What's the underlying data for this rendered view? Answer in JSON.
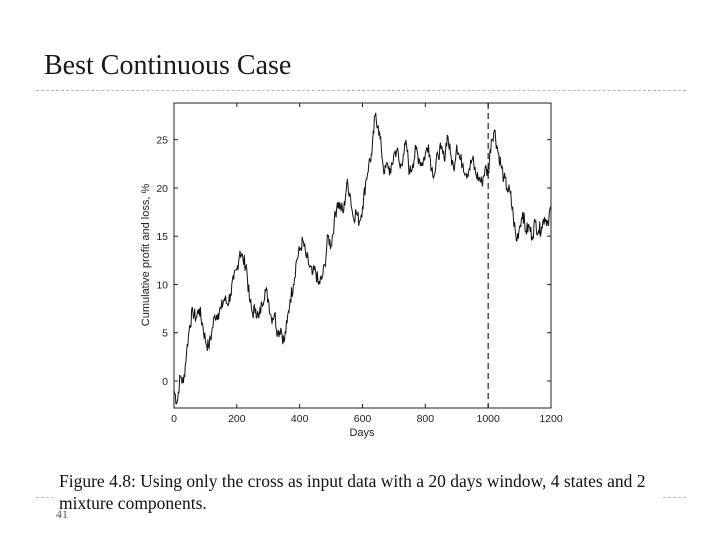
{
  "slide": {
    "title": "Best Continuous Case",
    "page_number": "41",
    "caption": "Figure 4.8: Using only the cross as input data with a 20 days window, 4 states and 2 mixture components."
  },
  "colors": {
    "line": "#111111",
    "axis": "#222222",
    "divider": "#b8b8b8"
  },
  "chart_data": {
    "type": "line",
    "title": "",
    "xlabel": "Days",
    "ylabel": "Cumulative profit and loss, %",
    "xlim": [
      0,
      1200
    ],
    "ylim": [
      -2.8,
      28.8
    ],
    "xticks": [
      0,
      200,
      400,
      600,
      800,
      1000,
      1200
    ],
    "yticks": [
      0,
      5,
      10,
      15,
      20,
      25
    ],
    "grid": false,
    "series": [
      {
        "name": "Cumulative profit and loss",
        "x": [
          0,
          10,
          20,
          30,
          40,
          50,
          60,
          70,
          80,
          90,
          100,
          110,
          120,
          130,
          140,
          150,
          160,
          170,
          180,
          190,
          200,
          210,
          220,
          230,
          240,
          250,
          260,
          270,
          280,
          290,
          300,
          310,
          320,
          330,
          340,
          350,
          360,
          370,
          380,
          390,
          400,
          410,
          420,
          430,
          440,
          450,
          460,
          470,
          480,
          490,
          500,
          510,
          520,
          530,
          540,
          550,
          560,
          570,
          580,
          590,
          600,
          610,
          620,
          630,
          640,
          650,
          660,
          670,
          680,
          690,
          700,
          710,
          720,
          730,
          740,
          750,
          760,
          770,
          780,
          790,
          800,
          810,
          820,
          830,
          840,
          850,
          860,
          870,
          880,
          890,
          900,
          910,
          920,
          930,
          940,
          950,
          960,
          970,
          980,
          990,
          1000,
          1010,
          1020,
          1030,
          1040,
          1050,
          1060,
          1070,
          1080,
          1090,
          1100,
          1110,
          1120,
          1130,
          1140,
          1150,
          1160,
          1170,
          1180,
          1190,
          1200
        ],
        "values": [
          -1.0,
          -2.2,
          0.5,
          -0.2,
          3.0,
          5.8,
          7.2,
          6.5,
          7.5,
          6.0,
          4.2,
          3.5,
          5.0,
          6.8,
          7.0,
          7.5,
          8.5,
          8.0,
          9.0,
          10.5,
          11.5,
          13.5,
          12.5,
          12.0,
          8.5,
          7.0,
          7.5,
          6.5,
          8.0,
          9.5,
          8.5,
          6.5,
          7.0,
          5.0,
          5.5,
          4.0,
          6.0,
          8.5,
          10.0,
          12.5,
          13.5,
          14.5,
          13.0,
          12.0,
          11.0,
          11.5,
          10.0,
          10.5,
          12.0,
          15.0,
          14.0,
          16.5,
          18.5,
          18.0,
          17.5,
          20.5,
          19.5,
          17.0,
          17.5,
          16.5,
          18.0,
          20.5,
          22.5,
          23.5,
          27.5,
          26.5,
          24.0,
          21.5,
          22.5,
          21.5,
          23.5,
          24.0,
          22.0,
          23.5,
          24.5,
          21.5,
          22.5,
          24.0,
          23.0,
          22.5,
          23.5,
          24.5,
          22.0,
          21.5,
          23.5,
          24.0,
          23.0,
          25.5,
          23.5,
          22.0,
          24.5,
          23.0,
          22.5,
          21.5,
          22.0,
          23.0,
          21.5,
          21.0,
          20.5,
          22.0,
          21.5,
          25.0,
          26.0,
          24.0,
          22.5,
          21.0,
          20.0,
          19.5,
          17.0,
          14.5,
          16.0,
          17.5,
          15.5,
          16.0,
          15.0,
          16.5,
          15.5,
          16.0,
          17.0,
          16.5,
          18.0
        ]
      }
    ],
    "annotations": [
      {
        "type": "vertical-dashed-line",
        "x": 1000
      }
    ]
  }
}
